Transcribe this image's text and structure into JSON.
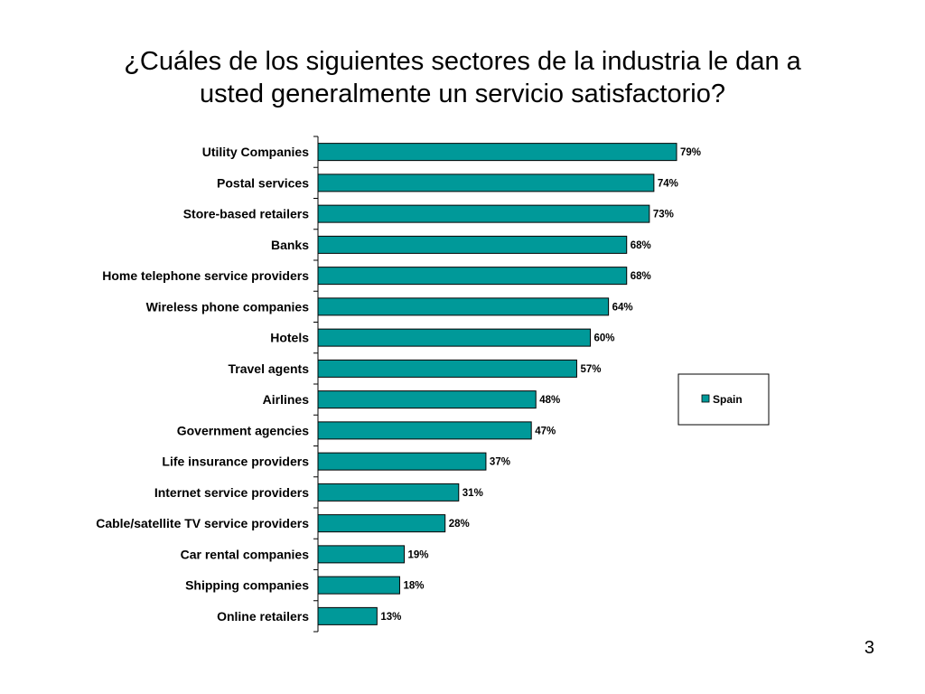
{
  "slide": {
    "title_line1": "¿Cuáles de los siguientes sectores de la industria le dan a",
    "title_line2": "usted generalmente un servicio satisfactorio?",
    "page_number": "3"
  },
  "chart_data": {
    "type": "bar",
    "orientation": "horizontal",
    "categories": [
      "Utility Companies",
      "Postal services",
      "Store-based retailers",
      "Banks",
      "Home telephone service providers",
      "Wireless phone companies",
      "Hotels",
      "Travel agents",
      "Airlines",
      "Government agencies",
      "Life insurance providers",
      "Internet service providers",
      "Cable/satellite TV service providers",
      "Car rental companies",
      "Shipping companies",
      "Online retailers"
    ],
    "series": [
      {
        "name": "Spain",
        "color": "#009999",
        "values": [
          79,
          74,
          73,
          68,
          68,
          64,
          60,
          57,
          48,
          47,
          37,
          31,
          28,
          19,
          18,
          13
        ],
        "labels": [
          "79%",
          "74%",
          "73%",
          "68%",
          "68%",
          "64%",
          "60%",
          "57%",
          "48%",
          "47%",
          "37%",
          "31%",
          "28%",
          "19%",
          "18%",
          "13%"
        ]
      }
    ],
    "xlim": [
      0,
      100
    ],
    "grid": false,
    "legend": "right"
  }
}
